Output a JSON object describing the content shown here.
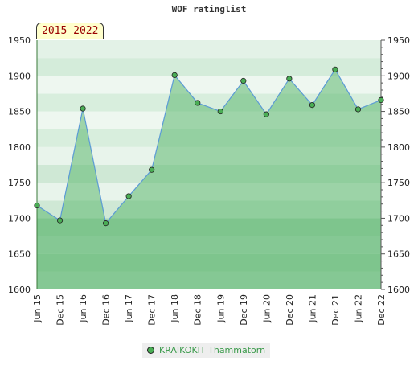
{
  "chart_data": {
    "type": "area",
    "title": "WOF ratinglist",
    "badge": "2015–2022",
    "categories": [
      "Jun 15",
      "Dec 15",
      "Jun 16",
      "Dec 16",
      "Jun 17",
      "Dec 17",
      "Jun 18",
      "Dec 18",
      "Jun 19",
      "Dec 19",
      "Jun 20",
      "Dec 20",
      "Jun 21",
      "Dec 21",
      "Jun 22",
      "Dec 22"
    ],
    "series": [
      {
        "name": "KRAIKOKIT Thammatorn",
        "values": [
          1718,
          1697,
          1854,
          1693,
          1731,
          1768,
          1901,
          1862,
          1850,
          1893,
          1846,
          1896,
          1859,
          1909,
          1853,
          1866
        ]
      }
    ],
    "ylim": [
      1600,
      1950
    ],
    "yticks": [
      1600,
      1650,
      1700,
      1750,
      1800,
      1850,
      1900,
      1950
    ],
    "axes": "left and right",
    "grid": "horizontal bands",
    "colors": {
      "line": "#5b9bd5",
      "fill": "#5cb870",
      "marker": "#4aae55"
    },
    "legend_position": "bottom-center"
  }
}
